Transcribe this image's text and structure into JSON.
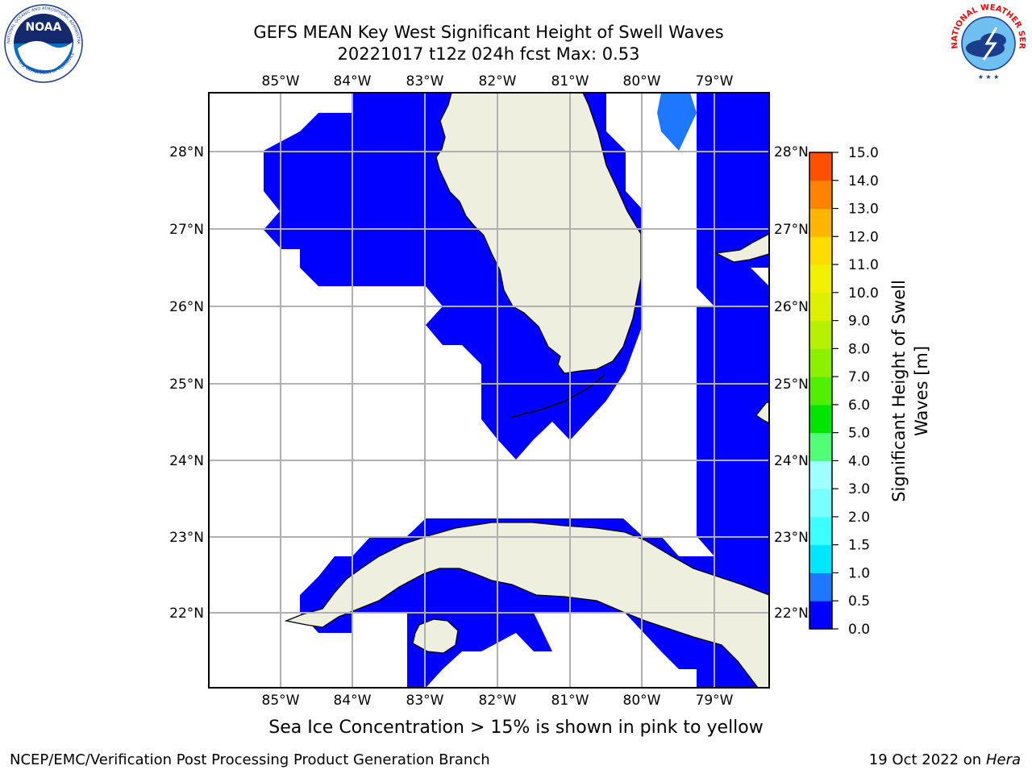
{
  "header": {
    "title_line1": "GEFS MEAN Key West Significant Height of Swell Waves",
    "title_line2": "20221017 t12z 024h fcst   Max: 0.53"
  },
  "caption": "Sea Ice Concentration > 15% is shown in pink to yellow",
  "footer": {
    "left": "NCEP/EMC/Verification Post Processing Product Generation Branch",
    "right_date": "19 Oct 2022 on",
    "right_host": "Hera"
  },
  "logos": {
    "noaa_text": "NOAA",
    "noaa_ring_text": "NATIONAL OCEANIC AND ATMOSPHERIC ADMINISTRATION",
    "noaa_bottom_text": "U.S. DEPARTMENT OF COMMERCE",
    "nws_ring_text": "NATIONAL WEATHER SERVICE"
  },
  "map": {
    "lon_labels": [
      "85°W",
      "84°W",
      "83°W",
      "82°W",
      "81°W",
      "80°W",
      "79°W"
    ],
    "lat_labels": [
      "28°N",
      "27°N",
      "26°N",
      "25°N",
      "24°N",
      "23°N",
      "22°N"
    ],
    "extent": {
      "lon_min": -86.0,
      "lon_max": -78.25,
      "lat_min": 21.0,
      "lat_max": 28.8
    },
    "colors": {
      "ocean_low": "#0000ff",
      "ocean_mid": "#1e78ff",
      "land": "#efefdf",
      "nodata": "#ffffff",
      "grid": "#b0b0b0"
    }
  },
  "colorbar": {
    "title_line1": "Significant Height of Swell",
    "title_line2": "Waves [m]",
    "ticks": [
      "0.0",
      "0.5",
      "1.0",
      "1.5",
      "2.0",
      "3.0",
      "4.0",
      "5.0",
      "6.0",
      "7.0",
      "8.0",
      "9.0",
      "10.0",
      "11.0",
      "12.0",
      "13.0",
      "14.0",
      "15.0"
    ],
    "bin_colors": [
      "#0000ff",
      "#1e78ff",
      "#00e6ff",
      "#3cffff",
      "#78ffff",
      "#a0ffff",
      "#50ff78",
      "#00e600",
      "#50f000",
      "#8cf000",
      "#b4f000",
      "#dcf000",
      "#f0f000",
      "#ffdc00",
      "#ffb400",
      "#ff8200",
      "#ff5000",
      "#ff2800"
    ]
  },
  "chart_data": {
    "type": "heatmap",
    "title": "GEFS MEAN Key West Significant Height of Swell Waves",
    "subtitle": "20221017 t12z 024h fcst   Max: 0.53",
    "variable": "Significant Height of Swell Waves [m]",
    "max_value": 0.53,
    "colorbar_levels": [
      0.0,
      0.5,
      1.0,
      1.5,
      2.0,
      3.0,
      4.0,
      5.0,
      6.0,
      7.0,
      8.0,
      9.0,
      10.0,
      11.0,
      12.0,
      13.0,
      14.0,
      15.0
    ],
    "xlim": [
      -86.0,
      -78.25
    ],
    "ylim": [
      21.0,
      28.8
    ],
    "grid": true
  }
}
